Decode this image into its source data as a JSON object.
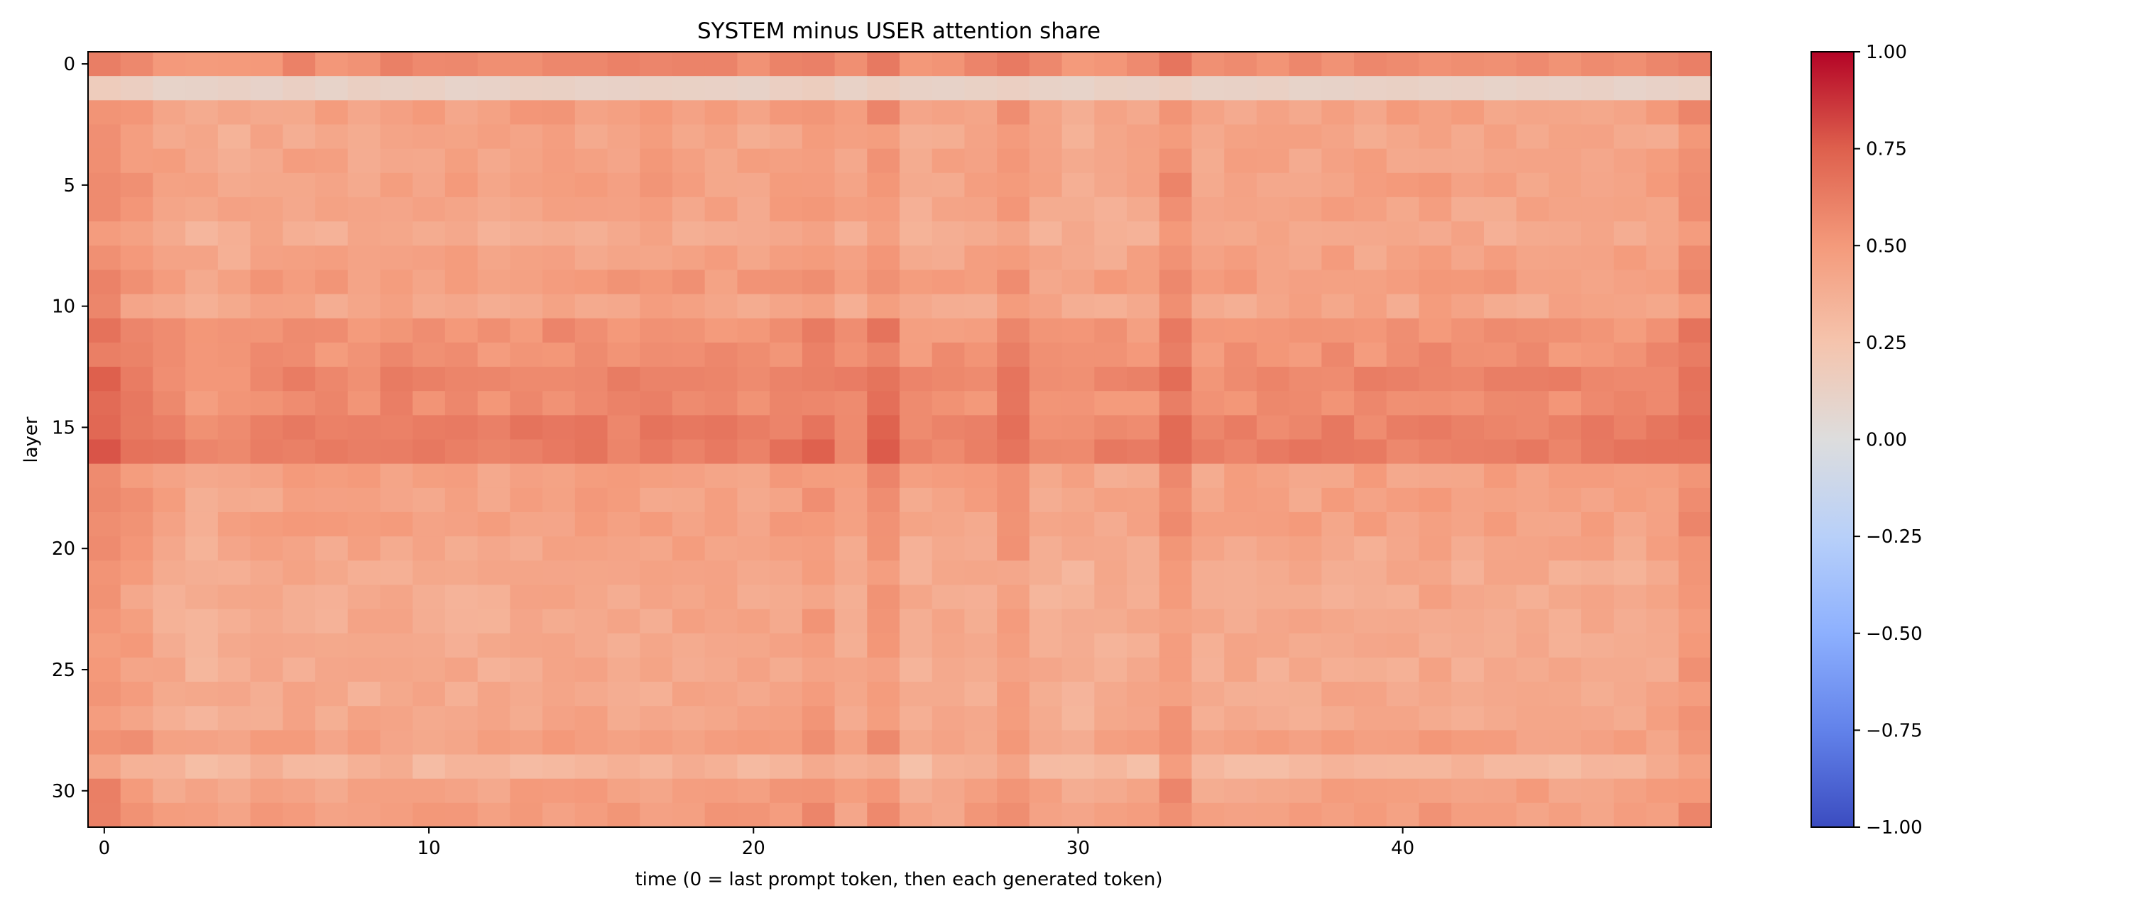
{
  "chart_data": {
    "type": "heatmap",
    "title": "SYSTEM minus USER attention share",
    "xlabel": "time (0 = last prompt token, then each generated token)",
    "ylabel": "layer",
    "n_cols": 50,
    "n_rows": 32,
    "x_ticks": [
      0,
      10,
      20,
      30,
      40
    ],
    "y_ticks": [
      0,
      5,
      10,
      15,
      20,
      25,
      30
    ],
    "colormap": "coolwarm",
    "vmin": -1.0,
    "vmax": 1.0,
    "colorbar_ticks": [
      1.0,
      0.75,
      0.5,
      0.25,
      0.0,
      -0.25,
      -0.5,
      -0.75,
      -1.0
    ],
    "colorbar_tick_labels": [
      "1.00",
      "0.75",
      "0.50",
      "0.25",
      "0.00",
      "−0.25",
      "−0.50",
      "−0.75",
      "−1.00"
    ],
    "row_levels": [
      0.55,
      0.12,
      0.45,
      0.42,
      0.44,
      0.45,
      0.43,
      0.4,
      0.44,
      0.48,
      0.42,
      0.52,
      0.53,
      0.58,
      0.55,
      0.6,
      0.62,
      0.45,
      0.44,
      0.45,
      0.42,
      0.4,
      0.4,
      0.4,
      0.4,
      0.4,
      0.4,
      0.41,
      0.45,
      0.33,
      0.45,
      0.47
    ],
    "col_offsets": [
      0.12,
      0.06,
      0.0,
      -0.03,
      -0.02,
      0.0,
      0.01,
      0.0,
      0.0,
      0.02,
      0.0,
      0.0,
      0.0,
      0.02,
      0.03,
      0.02,
      0.01,
      0.02,
      0.02,
      0.01,
      0.01,
      0.03,
      0.08,
      0.0,
      0.1,
      -0.02,
      -0.01,
      0.0,
      0.07,
      -0.02,
      -0.03,
      -0.02,
      -0.01,
      0.1,
      -0.02,
      0.0,
      0.0,
      0.0,
      0.01,
      0.0,
      0.0,
      0.02,
      0.0,
      0.0,
      0.0,
      0.0,
      0.0,
      0.0,
      0.02,
      0.1
    ],
    "noise_amplitude": 0.05
  }
}
